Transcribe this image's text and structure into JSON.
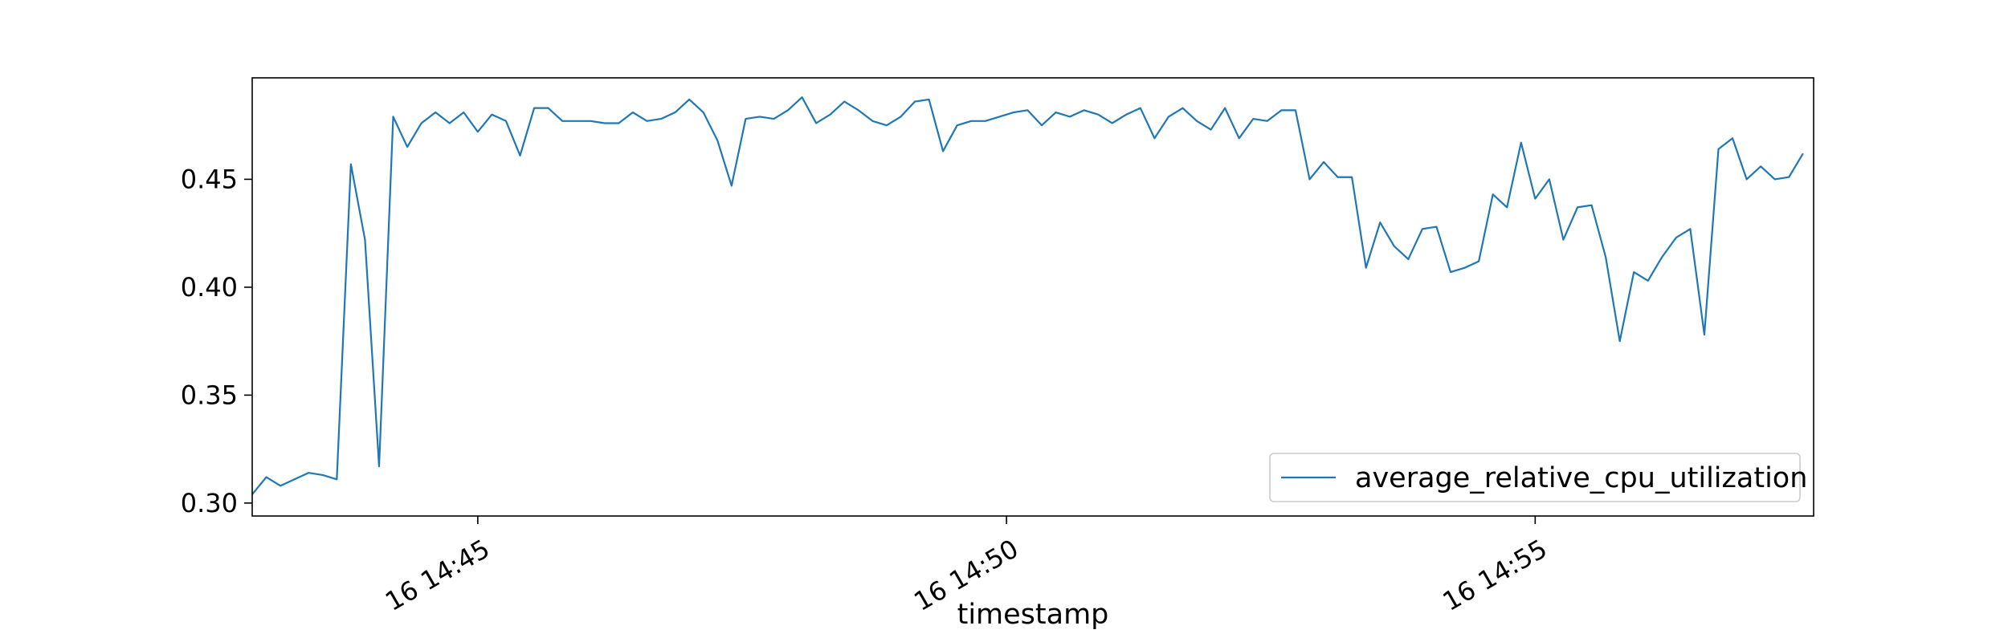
{
  "chart_data": {
    "type": "line",
    "title": "",
    "xlabel": "timestamp",
    "ylabel": "",
    "grid": false,
    "legend_position": "lower-right",
    "colors": {
      "series": "#1f77b4",
      "frame": "#000000"
    },
    "xlim": [
      "14:42:52",
      "14:57:38"
    ],
    "ylim": [
      0.294,
      0.497
    ],
    "x_ticks": [
      {
        "value": "14:45:00",
        "label": "16 14:45"
      },
      {
        "value": "14:50:00",
        "label": "16 14:50"
      },
      {
        "value": "14:55:00",
        "label": "16 14:55"
      }
    ],
    "y_ticks": [
      {
        "value": 0.3,
        "label": "0.30"
      },
      {
        "value": 0.35,
        "label": "0.35"
      },
      {
        "value": 0.4,
        "label": "0.40"
      },
      {
        "value": 0.45,
        "label": "0.45"
      }
    ],
    "x_start": "14:42:52",
    "x_step_seconds": 8,
    "series": [
      {
        "name": "average_relative_cpu_utilization",
        "values": [
          0.304,
          0.312,
          0.308,
          0.311,
          0.314,
          0.313,
          0.311,
          0.457,
          0.422,
          0.317,
          0.479,
          0.465,
          0.476,
          0.481,
          0.476,
          0.481,
          0.472,
          0.48,
          0.477,
          0.461,
          0.483,
          0.483,
          0.477,
          0.477,
          0.477,
          0.476,
          0.476,
          0.481,
          0.477,
          0.478,
          0.481,
          0.487,
          0.481,
          0.468,
          0.447,
          0.478,
          0.479,
          0.478,
          0.482,
          0.488,
          0.476,
          0.48,
          0.486,
          0.482,
          0.477,
          0.475,
          0.479,
          0.486,
          0.487,
          0.463,
          0.475,
          0.477,
          0.477,
          0.479,
          0.481,
          0.482,
          0.475,
          0.481,
          0.479,
          0.482,
          0.48,
          0.476,
          0.48,
          0.483,
          0.469,
          0.479,
          0.483,
          0.477,
          0.473,
          0.483,
          0.469,
          0.478,
          0.477,
          0.482,
          0.482,
          0.45,
          0.458,
          0.451,
          0.451,
          0.409,
          0.43,
          0.419,
          0.413,
          0.427,
          0.428,
          0.407,
          0.409,
          0.412,
          0.443,
          0.437,
          0.467,
          0.441,
          0.45,
          0.422,
          0.437,
          0.438,
          0.414,
          0.375,
          0.407,
          0.403,
          0.414,
          0.423,
          0.427,
          0.378,
          0.464,
          0.469,
          0.45,
          0.456,
          0.45,
          0.451,
          0.462
        ]
      }
    ]
  }
}
